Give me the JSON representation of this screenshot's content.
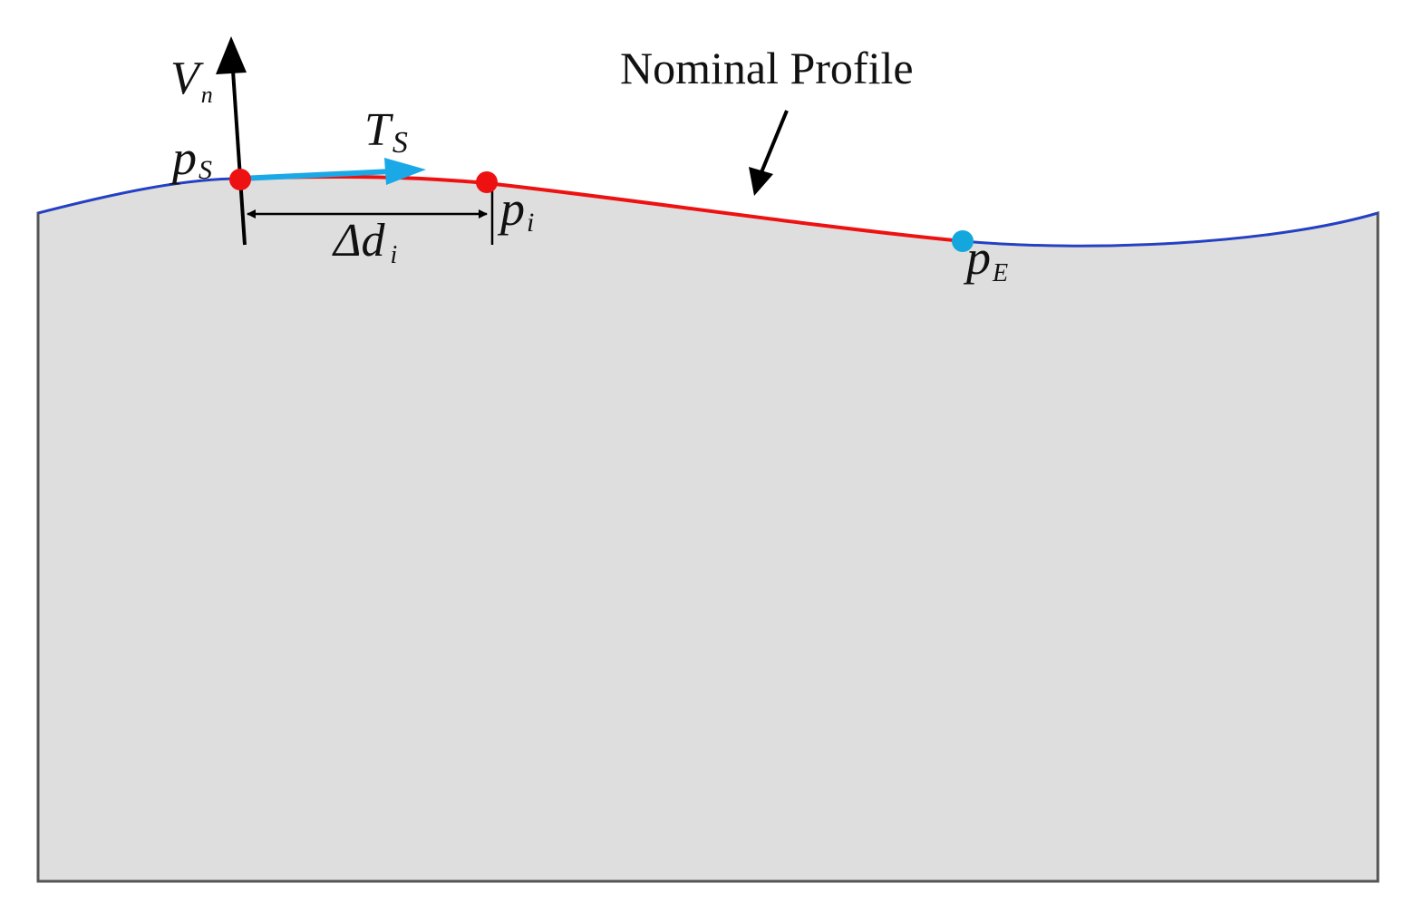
{
  "labels": {
    "nominal_profile": "Nominal Profile",
    "normal_vector": {
      "main": "V",
      "sub": "n"
    },
    "tangent_vector": {
      "main": "T",
      "sub": "S"
    },
    "start_point": {
      "main": "p",
      "sub": "S"
    },
    "intermediate_point": {
      "main": "p",
      "sub": "i"
    },
    "end_point": {
      "main": "p",
      "sub": "E"
    },
    "spacing": {
      "main": "Δd",
      "sub": "i"
    }
  },
  "colors": {
    "workpiece_fill": "#dedede",
    "workpiece_border": "#555555",
    "nominal_profile": "#1f3fd6",
    "segment": "#ee1111",
    "start_point": "#ee1111",
    "intermediate_point": "#ee1111",
    "end_point": "#13a7dd",
    "tangent_arrow": "#1aa9e6",
    "normal_arrow": "#000000",
    "dimension": "#000000"
  }
}
